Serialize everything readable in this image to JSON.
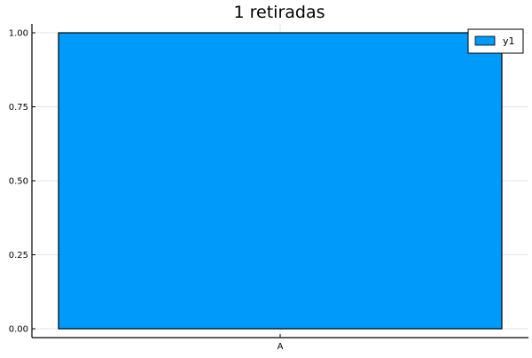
{
  "chart_data": {
    "type": "bar",
    "title": "1 retiradas",
    "categories": [
      "A"
    ],
    "series": [
      {
        "name": "y1",
        "values": [
          1.0
        ],
        "color": "#009AFA"
      }
    ],
    "ylim": [
      0,
      1
    ],
    "yticks": [
      "0.00",
      "0.25",
      "0.50",
      "0.75",
      "1.00"
    ],
    "ytick_values": [
      0,
      0.25,
      0.5,
      0.75,
      1.0
    ],
    "grid": true,
    "legend_position": "top-right"
  }
}
